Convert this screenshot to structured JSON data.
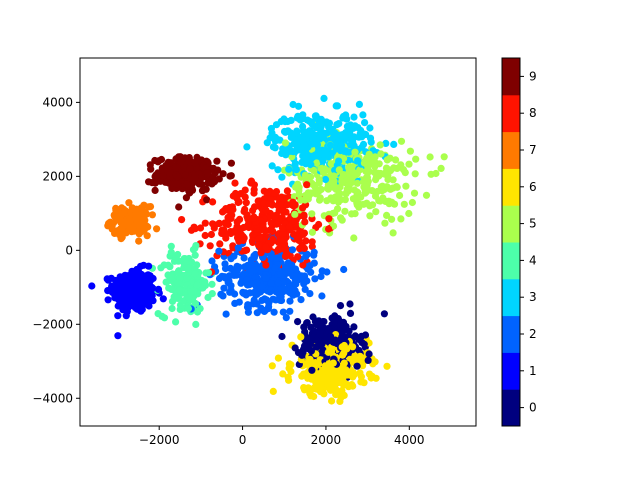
{
  "chart_data": {
    "type": "scatter",
    "title": "",
    "xlabel": "",
    "ylabel": "",
    "xlim": [
      -3900,
      5600
    ],
    "ylim": [
      -4750,
      5200
    ],
    "xticks": [
      -2000,
      0,
      2000,
      4000
    ],
    "yticks": [
      -4000,
      -2000,
      0,
      2000,
      4000
    ],
    "grid": false,
    "colormap": "jet",
    "colorbar": {
      "ticks": [
        0,
        1,
        2,
        3,
        4,
        5,
        6,
        7,
        8,
        9
      ],
      "colors": [
        "#00007f",
        "#0000ff",
        "#0063ff",
        "#00d5ff",
        "#4dffaa",
        "#aaff4d",
        "#ffe500",
        "#ff7a00",
        "#ff1300",
        "#7f0000"
      ]
    },
    "clusters": [
      {
        "label": 1,
        "center": [
          -2600,
          -1100
        ],
        "spread": [
          420,
          480
        ],
        "count": 320
      },
      {
        "label": 7,
        "center": [
          -2700,
          800
        ],
        "spread": [
          380,
          320
        ],
        "count": 140
      },
      {
        "label": 9,
        "center": [
          -1350,
          2050
        ],
        "spread": [
          600,
          380
        ],
        "count": 240
      },
      {
        "label": 4,
        "center": [
          -1400,
          -900
        ],
        "spread": [
          500,
          700
        ],
        "count": 170
      },
      {
        "label": 8,
        "center": [
          600,
          700
        ],
        "spread": [
          1100,
          900
        ],
        "count": 320
      },
      {
        "label": 2,
        "center": [
          600,
          -700
        ],
        "spread": [
          950,
          700
        ],
        "count": 330
      },
      {
        "label": 3,
        "center": [
          1900,
          2900
        ],
        "spread": [
          1000,
          700
        ],
        "count": 330
      },
      {
        "label": 5,
        "center": [
          2600,
          1900
        ],
        "spread": [
          1300,
          900
        ],
        "count": 320
      },
      {
        "label": 0,
        "center": [
          2100,
          -2500
        ],
        "spread": [
          600,
          600
        ],
        "count": 280
      },
      {
        "label": 6,
        "center": [
          2100,
          -3200
        ],
        "spread": [
          750,
          600
        ],
        "count": 330
      }
    ]
  }
}
